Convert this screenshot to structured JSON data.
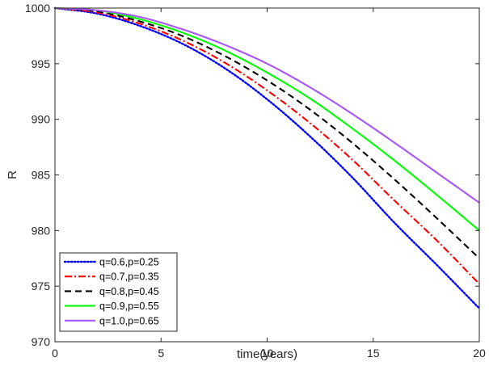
{
  "chart_data": {
    "type": "line",
    "title": "",
    "xlabel": "time(years)",
    "ylabel": "R",
    "xlim": [
      0,
      20
    ],
    "ylim": [
      970,
      1000
    ],
    "xticks": [
      0,
      5,
      10,
      15,
      20
    ],
    "yticks": [
      970,
      975,
      980,
      985,
      990,
      995,
      1000
    ],
    "grid": false,
    "legend_position": "bottom-left",
    "x": [
      0,
      2,
      4,
      6,
      8,
      10,
      12,
      14,
      16,
      18,
      20
    ],
    "series": [
      {
        "name": "q=0.6,p=0.25",
        "color": "#0000ff",
        "style": "dotted",
        "values": [
          1000,
          999.5,
          998.4,
          996.8,
          994.6,
          991.8,
          988.5,
          984.8,
          980.7,
          976.9,
          973.0
        ]
      },
      {
        "name": "q=0.7,p=0.35",
        "color": "#ff0000",
        "style": "dashdot",
        "values": [
          1000,
          999.6,
          998.6,
          997.1,
          995.1,
          992.6,
          989.7,
          986.4,
          982.7,
          979.1,
          975.2
        ]
      },
      {
        "name": "q=0.8,p=0.45",
        "color": "#000000",
        "style": "dashed",
        "values": [
          1000,
          999.7,
          998.8,
          997.5,
          995.7,
          993.5,
          990.9,
          987.9,
          984.6,
          981.1,
          977.5
        ]
      },
      {
        "name": "q=0.9,p=0.55",
        "color": "#00ff00",
        "style": "solid",
        "values": [
          1000,
          999.8,
          999.0,
          997.8,
          996.2,
          994.2,
          991.9,
          989.2,
          986.3,
          983.2,
          980.0
        ]
      },
      {
        "name": "q=1.0,p=0.65",
        "color": "#a855f7",
        "style": "solid",
        "values": [
          1000,
          999.8,
          999.2,
          998.1,
          996.7,
          995.0,
          992.9,
          990.5,
          987.9,
          985.2,
          982.5
        ]
      }
    ]
  }
}
